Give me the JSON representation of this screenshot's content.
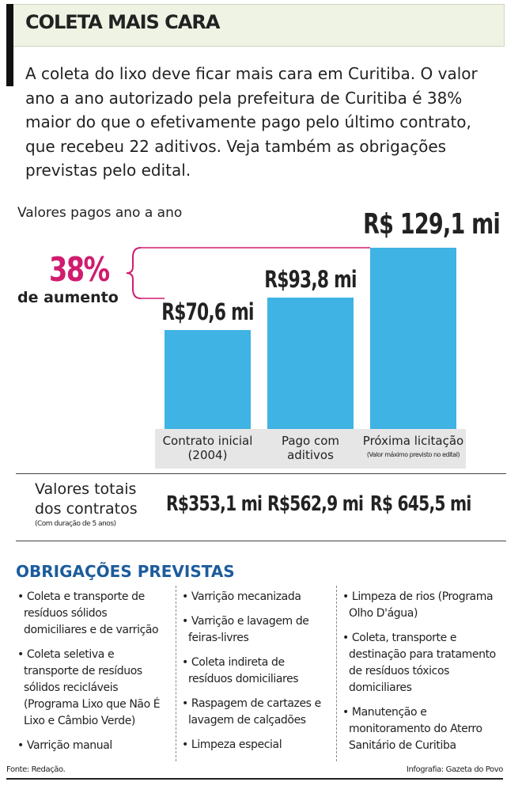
{
  "header": {
    "title": "COLETA MAIS CARA",
    "intro": "A coleta do lixo deve ficar mais cara em Curitiba. O valor ano a ano autorizado pela prefeitura de Curitiba é 38% maior do que o efetivamente pago pelo último contrato, que recebeu 22 aditivos. Veja também as obrigações previstas pelo edital."
  },
  "chart_data": {
    "type": "bar",
    "title": "Valores pagos ano a ano",
    "categories": [
      "Contrato inicial (2004)",
      "Pago com aditivos",
      "Próxima licitação"
    ],
    "category_notes": [
      null,
      null,
      "(Valor máximo previsto no edital)"
    ],
    "values": [
      70.6,
      93.8,
      129.1
    ],
    "value_labels": [
      "R$70,6 mi",
      "R$93,8 mi",
      "R$ 129,1 mi"
    ],
    "color": "#3fb3e3",
    "annotation": {
      "value": "38%",
      "label": "de aumento",
      "color": "#d01c6f"
    }
  },
  "totals": {
    "label": "Valores totais dos contratos",
    "note": "(Com duração de 5 anos)",
    "values": [
      "R$353,1 mi",
      "R$562,9 mi",
      "R$ 645,5 mi"
    ]
  },
  "obligations": {
    "title": "OBRIGAÇÕES PREVISTAS",
    "columns": [
      [
        "Coleta e transporte de resíduos sólidos domiciliares e de varrição",
        "Coleta seletiva e transporte de resíduos sólidos recicláveis (Programa Lixo que Não É Lixo e Câmbio Verde)",
        "Varrição manual"
      ],
      [
        "Varrição mecanizada",
        "Varrição e lavagem de feiras-livres",
        "Coleta indireta de resíduos domiciliares",
        "Raspagem de cartazes e lavagem de calçadões",
        "Limpeza especial"
      ],
      [
        "Limpeza de rios (Programa Olho D'água)",
        "Coleta, transporte e destinação para tratamento de resíduos tóxicos domiciliares",
        "Manutenção e monitoramento do Aterro Sanitário de Curitiba"
      ]
    ]
  },
  "footer": {
    "source": "Fonte: Redação.",
    "credit": "Infografia: Gazeta do Povo"
  }
}
